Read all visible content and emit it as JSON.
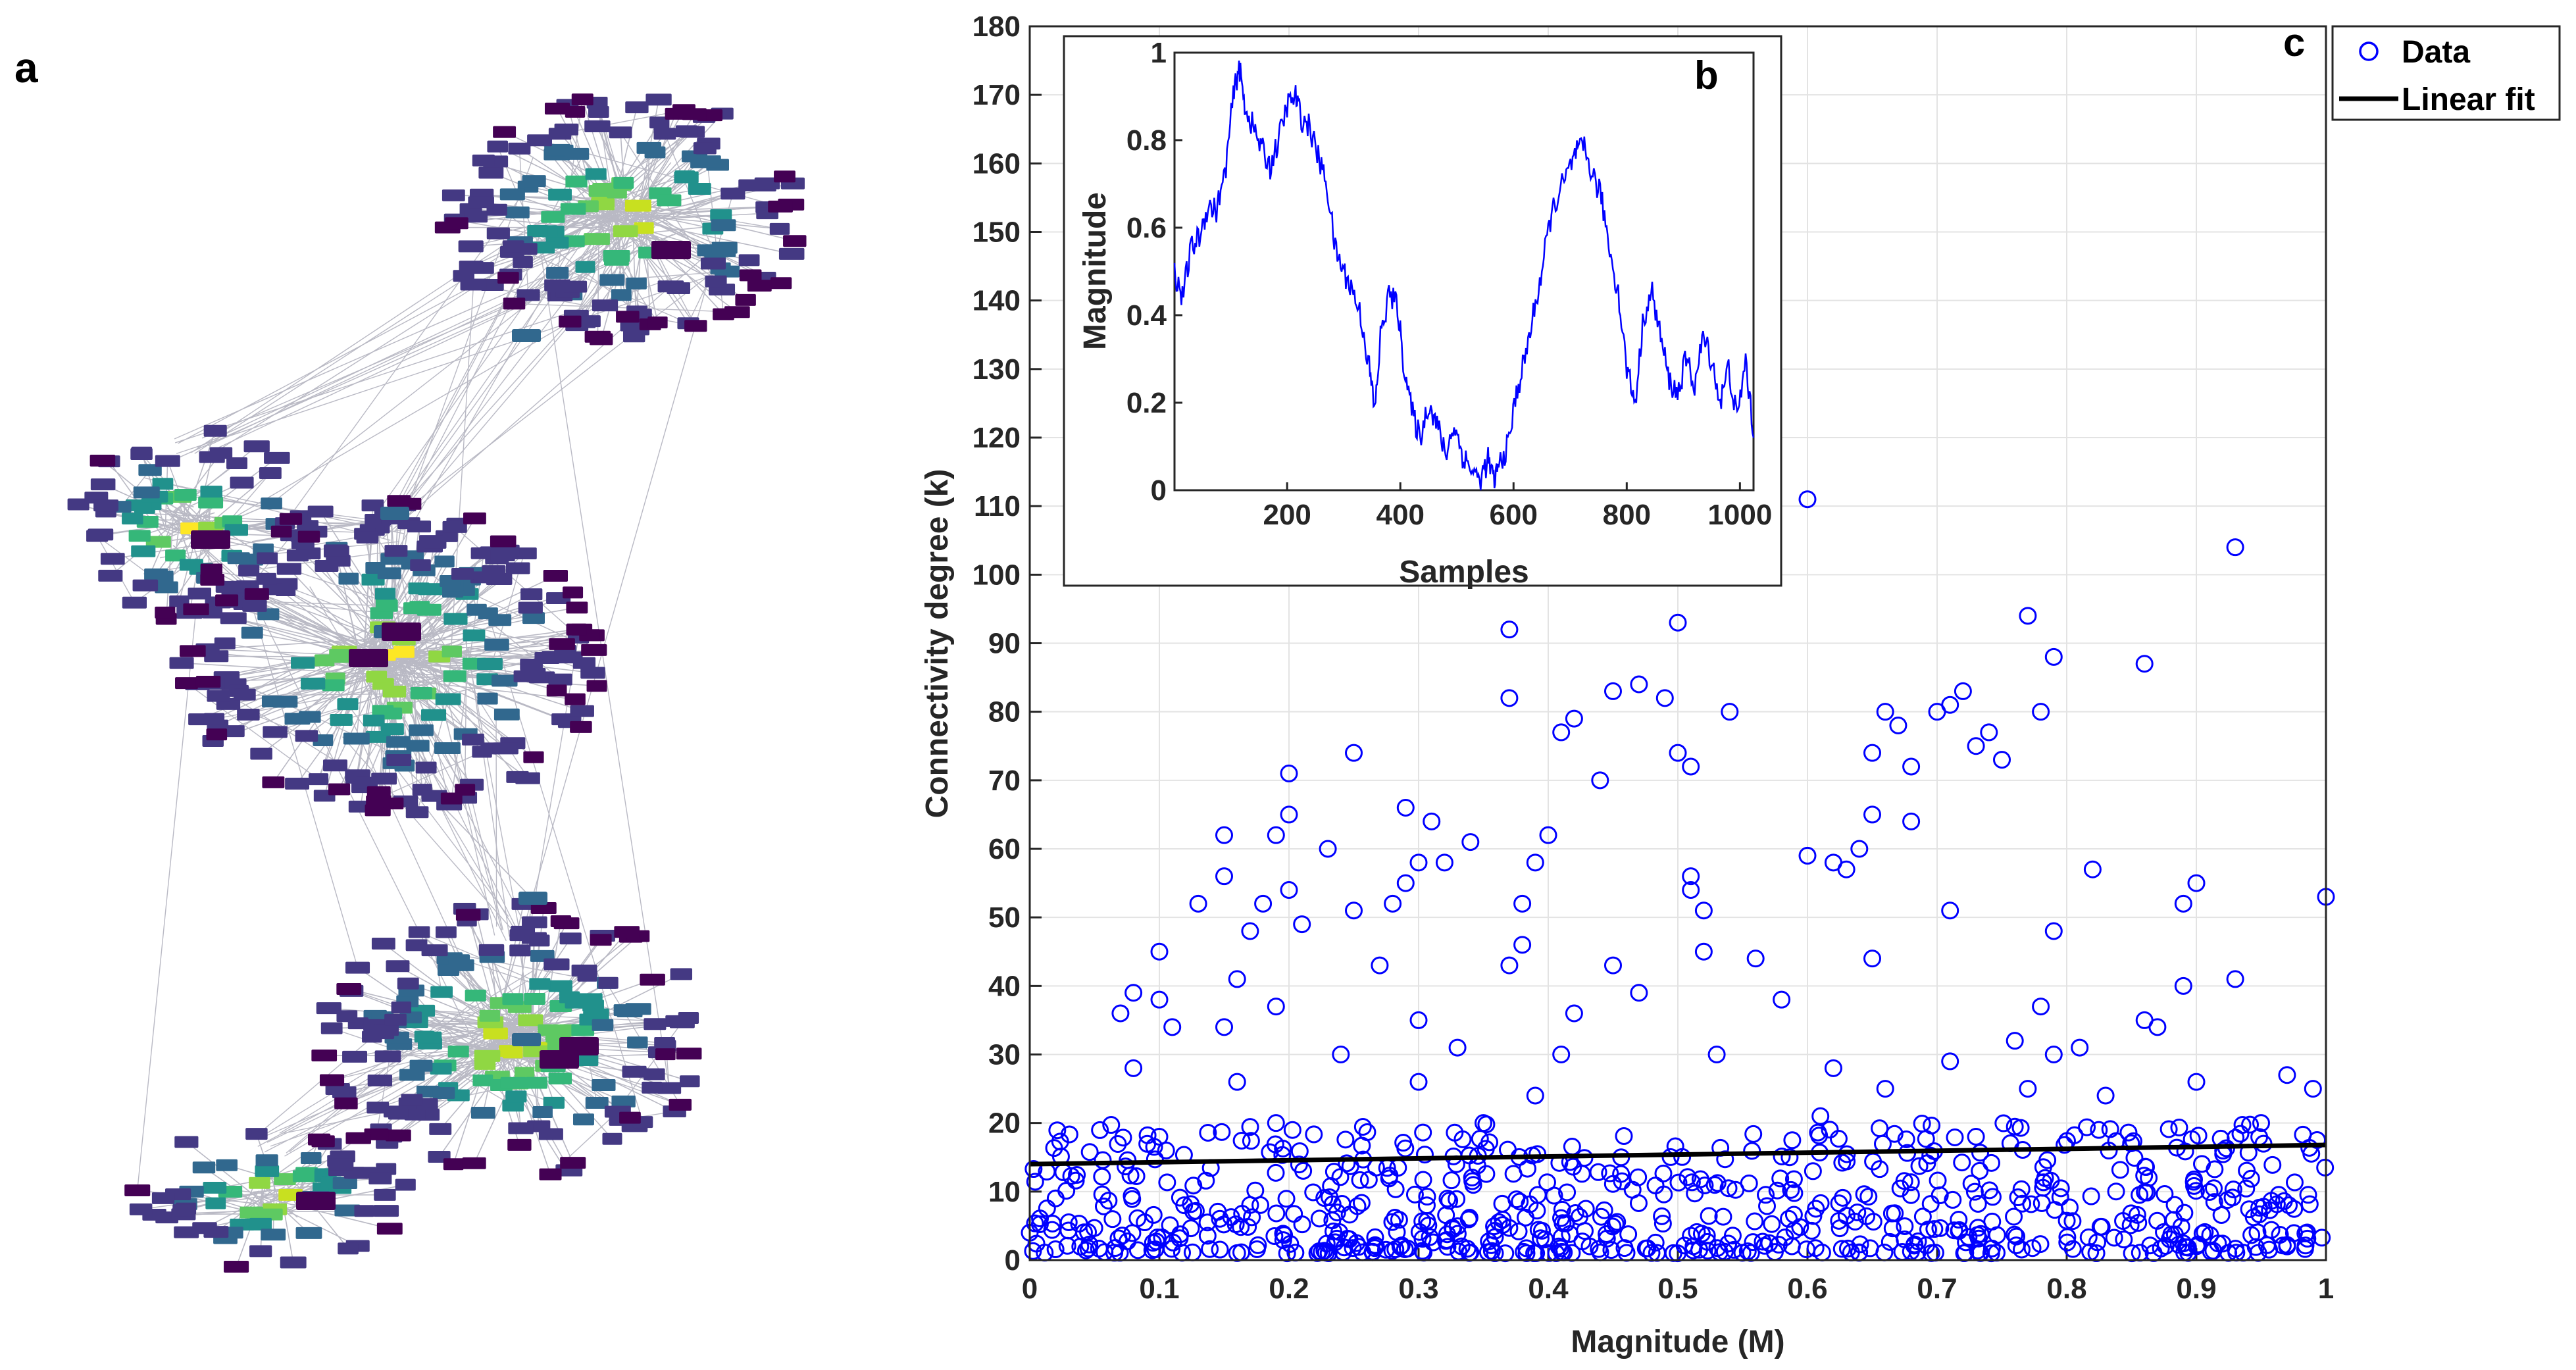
{
  "panels": {
    "a": "a",
    "b": "b",
    "c": "c"
  },
  "network_panel": {
    "description_kind": "network-graph",
    "node_colors": [
      "#fde725",
      "#c8e020",
      "#90d743",
      "#5ec962",
      "#35b779",
      "#21918c",
      "#31688e",
      "#443983",
      "#440154"
    ],
    "edge_color": "#b9b9c4"
  },
  "chart_data": [
    {
      "id": "c",
      "type": "scatter",
      "title": "",
      "xlabel": "Magnitude (M)",
      "ylabel": "Connectivity degree (k)",
      "xlim": [
        0,
        1
      ],
      "ylim": [
        0,
        180
      ],
      "xticks": [
        "0",
        "0.1",
        "0.2",
        "0.3",
        "0.4",
        "0.5",
        "0.6",
        "0.7",
        "0.8",
        "0.9",
        "1"
      ],
      "yticks": [
        "0",
        "10",
        "20",
        "30",
        "40",
        "50",
        "60",
        "70",
        "80",
        "90",
        "100",
        "110",
        "120",
        "130",
        "140",
        "150",
        "160",
        "170",
        "180"
      ],
      "grid": true,
      "legend": {
        "placement": "top-right",
        "entries": [
          "Data",
          "Linear fit"
        ]
      },
      "marker_color": "#0000ff",
      "fit_color": "#000000",
      "fit": {
        "x": [
          0,
          1
        ],
        "y": [
          14,
          16.8
        ]
      },
      "highlighted_points": [
        {
          "x": 0.6,
          "y": 111
        },
        {
          "x": 0.93,
          "y": 104
        },
        {
          "x": 0.77,
          "y": 94
        },
        {
          "x": 0.5,
          "y": 93
        },
        {
          "x": 0.37,
          "y": 92
        },
        {
          "x": 0.79,
          "y": 88
        },
        {
          "x": 0.86,
          "y": 87
        },
        {
          "x": 0.47,
          "y": 84
        },
        {
          "x": 0.45,
          "y": 83
        },
        {
          "x": 0.72,
          "y": 83
        },
        {
          "x": 0.49,
          "y": 82
        },
        {
          "x": 0.37,
          "y": 82
        },
        {
          "x": 0.71,
          "y": 81
        },
        {
          "x": 0.54,
          "y": 80
        },
        {
          "x": 0.66,
          "y": 80
        },
        {
          "x": 0.78,
          "y": 80
        },
        {
          "x": 0.7,
          "y": 80
        },
        {
          "x": 0.42,
          "y": 79
        },
        {
          "x": 0.67,
          "y": 78
        },
        {
          "x": 0.41,
          "y": 77
        },
        {
          "x": 0.74,
          "y": 77
        },
        {
          "x": 0.73,
          "y": 75
        },
        {
          "x": 0.25,
          "y": 74
        },
        {
          "x": 0.5,
          "y": 74
        },
        {
          "x": 0.65,
          "y": 74
        },
        {
          "x": 0.75,
          "y": 73
        },
        {
          "x": 0.51,
          "y": 72
        },
        {
          "x": 0.68,
          "y": 72
        },
        {
          "x": 0.2,
          "y": 71
        },
        {
          "x": 0.44,
          "y": 70
        },
        {
          "x": 0.29,
          "y": 66
        },
        {
          "x": 0.65,
          "y": 65
        },
        {
          "x": 0.2,
          "y": 65
        },
        {
          "x": 0.68,
          "y": 64
        },
        {
          "x": 0.31,
          "y": 64
        },
        {
          "x": 0.15,
          "y": 62
        },
        {
          "x": 0.19,
          "y": 62
        },
        {
          "x": 0.4,
          "y": 62
        },
        {
          "x": 0.34,
          "y": 61
        },
        {
          "x": 0.23,
          "y": 60
        },
        {
          "x": 0.64,
          "y": 60
        },
        {
          "x": 0.6,
          "y": 59
        },
        {
          "x": 0.3,
          "y": 58
        },
        {
          "x": 0.32,
          "y": 58
        },
        {
          "x": 0.39,
          "y": 58
        },
        {
          "x": 0.62,
          "y": 58
        },
        {
          "x": 0.63,
          "y": 57
        },
        {
          "x": 0.82,
          "y": 57
        },
        {
          "x": 0.15,
          "y": 56
        },
        {
          "x": 0.51,
          "y": 56
        },
        {
          "x": 0.29,
          "y": 55
        },
        {
          "x": 0.9,
          "y": 55
        },
        {
          "x": 0.51,
          "y": 54
        },
        {
          "x": 0.2,
          "y": 54
        },
        {
          "x": 1.0,
          "y": 53
        },
        {
          "x": 0.13,
          "y": 52
        },
        {
          "x": 0.28,
          "y": 52
        },
        {
          "x": 0.89,
          "y": 52
        },
        {
          "x": 0.18,
          "y": 52
        },
        {
          "x": 0.38,
          "y": 52
        },
        {
          "x": 0.25,
          "y": 51
        },
        {
          "x": 0.52,
          "y": 51
        },
        {
          "x": 0.71,
          "y": 51
        },
        {
          "x": 0.21,
          "y": 49
        },
        {
          "x": 0.79,
          "y": 48
        },
        {
          "x": 0.17,
          "y": 48
        },
        {
          "x": 0.38,
          "y": 46
        },
        {
          "x": 0.52,
          "y": 45
        },
        {
          "x": 0.1,
          "y": 45
        },
        {
          "x": 0.56,
          "y": 44
        },
        {
          "x": 0.65,
          "y": 44
        },
        {
          "x": 0.37,
          "y": 43
        },
        {
          "x": 0.45,
          "y": 43
        },
        {
          "x": 0.27,
          "y": 43
        },
        {
          "x": 0.93,
          "y": 41
        },
        {
          "x": 0.16,
          "y": 41
        },
        {
          "x": 0.89,
          "y": 40
        },
        {
          "x": 0.08,
          "y": 39
        },
        {
          "x": 0.47,
          "y": 39
        },
        {
          "x": 0.58,
          "y": 38
        },
        {
          "x": 0.1,
          "y": 38
        },
        {
          "x": 0.78,
          "y": 37
        },
        {
          "x": 0.19,
          "y": 37
        },
        {
          "x": 0.07,
          "y": 36
        },
        {
          "x": 0.42,
          "y": 36
        },
        {
          "x": 0.86,
          "y": 35
        },
        {
          "x": 0.3,
          "y": 35
        },
        {
          "x": 0.15,
          "y": 34
        },
        {
          "x": 0.11,
          "y": 34
        },
        {
          "x": 0.87,
          "y": 34
        },
        {
          "x": 0.33,
          "y": 31
        },
        {
          "x": 0.81,
          "y": 31
        },
        {
          "x": 0.76,
          "y": 32
        },
        {
          "x": 0.41,
          "y": 30
        },
        {
          "x": 0.53,
          "y": 30
        },
        {
          "x": 0.24,
          "y": 30
        },
        {
          "x": 0.79,
          "y": 30
        },
        {
          "x": 0.71,
          "y": 29
        },
        {
          "x": 0.08,
          "y": 28
        },
        {
          "x": 0.62,
          "y": 28
        },
        {
          "x": 0.97,
          "y": 27
        },
        {
          "x": 0.9,
          "y": 26
        },
        {
          "x": 0.3,
          "y": 26
        },
        {
          "x": 0.99,
          "y": 25
        },
        {
          "x": 0.16,
          "y": 26
        },
        {
          "x": 0.66,
          "y": 25
        },
        {
          "x": 0.77,
          "y": 25
        },
        {
          "x": 0.83,
          "y": 24
        },
        {
          "x": 0.39,
          "y": 24
        },
        {
          "x": 0.61,
          "y": 21
        },
        {
          "x": 0.95,
          "y": 20
        },
        {
          "x": 0.19,
          "y": 20
        },
        {
          "x": 0.35,
          "y": 20
        },
        {
          "x": 0.73,
          "y": 18
        },
        {
          "x": 0.1,
          "y": 18
        },
        {
          "x": 0.02,
          "y": 9
        },
        {
          "x": 0.97,
          "y": 2
        },
        {
          "x": 0.0,
          "y": 4
        }
      ],
      "dense_region": {
        "x_range": [
          0,
          1
        ],
        "y_range": [
          1,
          20
        ],
        "count": 700
      }
    },
    {
      "id": "b",
      "type": "line",
      "title": "",
      "xlabel": "Samples",
      "ylabel": "Magnitude",
      "xlim": [
        1,
        1024
      ],
      "ylim": [
        0,
        1
      ],
      "xticks": [
        "200",
        "400",
        "600",
        "800",
        "1000"
      ],
      "yticks": [
        "0",
        "0.2",
        "0.4",
        "0.6",
        "0.8",
        "1"
      ],
      "line_color": "#0000ff",
      "series": [
        {
          "name": "Magnitude",
          "x": [
            1,
            15,
            30,
            45,
            60,
            75,
            90,
            105,
            115,
            125,
            140,
            155,
            170,
            185,
            200,
            215,
            225,
            240,
            255,
            270,
            285,
            300,
            315,
            330,
            345,
            355,
            365,
            380,
            395,
            405,
            420,
            435,
            450,
            465,
            480,
            495,
            510,
            525,
            540,
            555,
            565,
            575,
            590,
            605,
            620,
            635,
            650,
            665,
            680,
            695,
            710,
            725,
            740,
            755,
            770,
            785,
            800,
            815,
            830,
            845,
            860,
            875,
            890,
            905,
            920,
            935,
            950,
            965,
            980,
            995,
            1010,
            1024
          ],
          "y": [
            0.5,
            0.44,
            0.55,
            0.58,
            0.65,
            0.64,
            0.72,
            0.9,
            0.97,
            0.88,
            0.83,
            0.78,
            0.74,
            0.8,
            0.88,
            0.9,
            0.85,
            0.83,
            0.76,
            0.7,
            0.55,
            0.5,
            0.46,
            0.4,
            0.28,
            0.18,
            0.35,
            0.45,
            0.42,
            0.3,
            0.18,
            0.12,
            0.2,
            0.15,
            0.08,
            0.15,
            0.08,
            0.05,
            0.02,
            0.07,
            0.02,
            0.06,
            0.1,
            0.22,
            0.3,
            0.4,
            0.5,
            0.62,
            0.68,
            0.72,
            0.77,
            0.78,
            0.72,
            0.67,
            0.55,
            0.45,
            0.28,
            0.2,
            0.4,
            0.45,
            0.35,
            0.25,
            0.22,
            0.3,
            0.24,
            0.35,
            0.3,
            0.2,
            0.28,
            0.16,
            0.3,
            0.12
          ]
        }
      ]
    }
  ]
}
